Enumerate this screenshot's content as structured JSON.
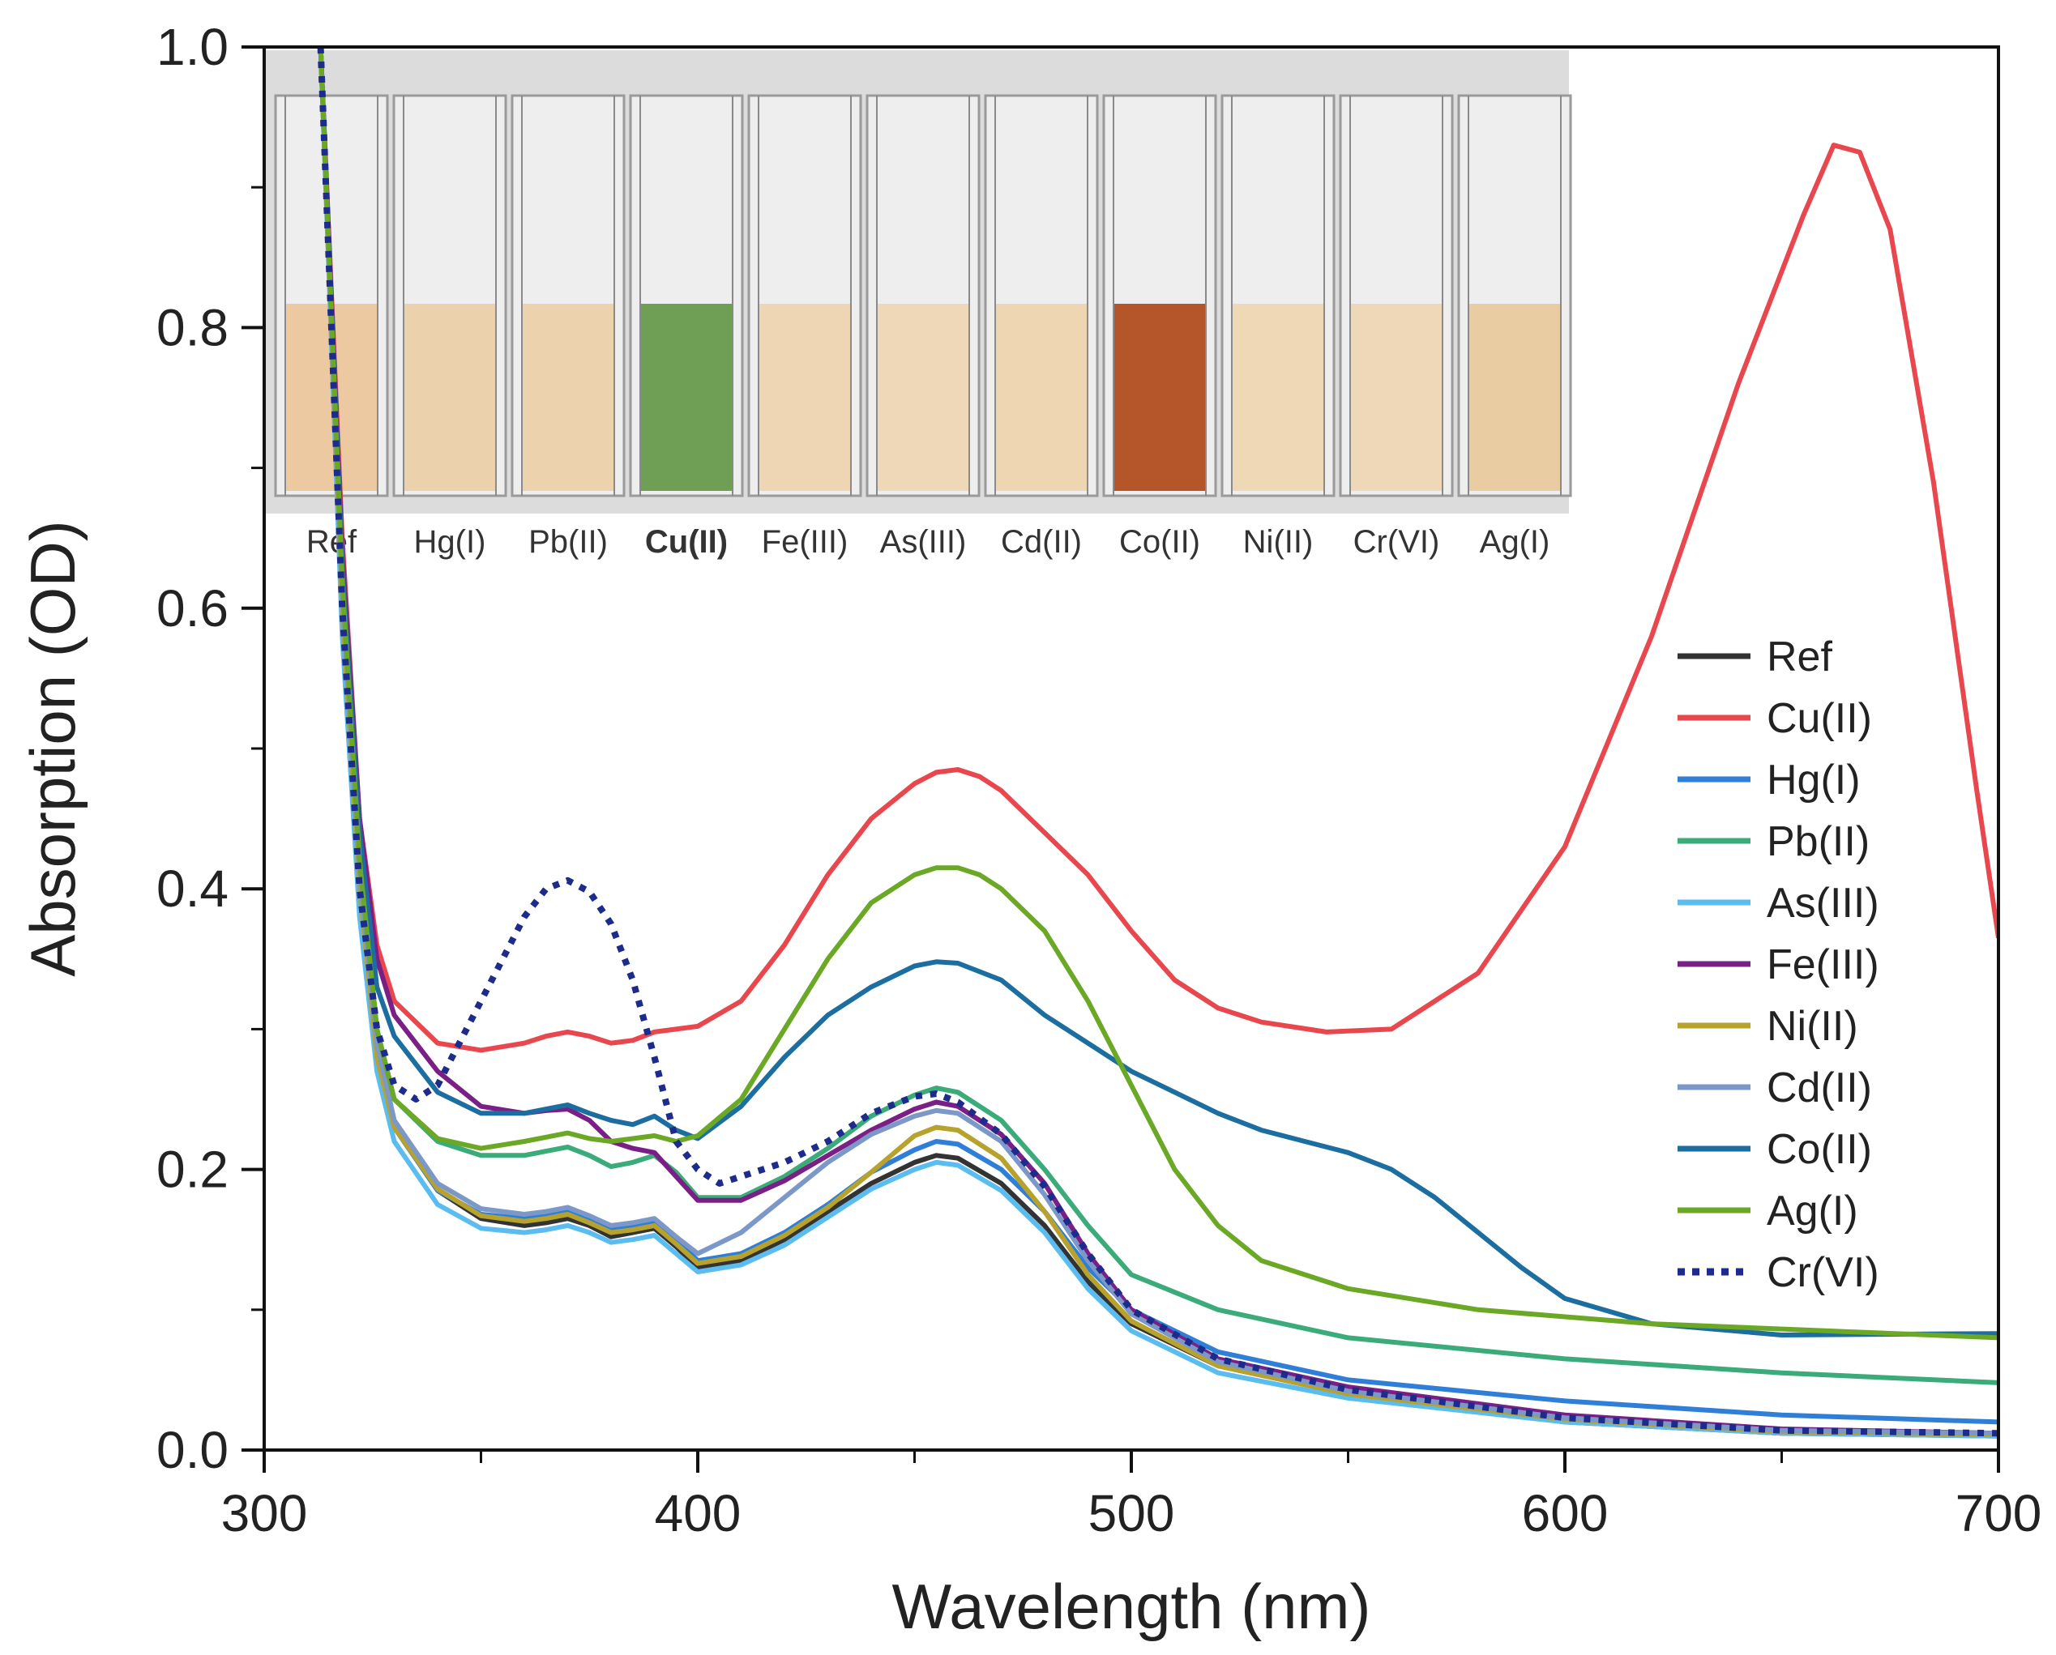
{
  "chart_data": {
    "type": "line",
    "xlabel": "Wavelength (nm)",
    "ylabel": "Absorption (OD)",
    "xlim": [
      300,
      700
    ],
    "ylim": [
      0.0,
      1.0
    ],
    "xticks": [
      300,
      400,
      500,
      600,
      700
    ],
    "yticks": [
      0.0,
      0.2,
      0.4,
      0.6,
      0.8,
      1.0
    ],
    "ytick_labels": [
      "0.0",
      "0.2",
      "0.4",
      "0.6",
      "0.8",
      "1.0"
    ],
    "legend_position": "right",
    "inset": {
      "description_labels": [
        "Ref",
        "Hg(I)",
        "Pb(II)",
        "Cu(II)",
        "Fe(III)",
        "As(III)",
        "Cd(II)",
        "Co(II)",
        "Ni(II)",
        "Cr(VI)",
        "Ag(I)"
      ],
      "highlight_label": "Cu(II)",
      "liquid_colors": [
        "#ecc9a0",
        "#ecd1ad",
        "#edd2ae",
        "#6f9e55",
        "#eed6b4",
        "#eed8b8",
        "#eed6b2",
        "#b5562a",
        "#eed8b6",
        "#eed8b7",
        "#e9cca2"
      ]
    },
    "series": [
      {
        "name": "Ref",
        "color": "#333333",
        "dash": "solid",
        "x": [
          313,
          318,
          322,
          326,
          330,
          340,
          350,
          360,
          365,
          370,
          375,
          380,
          385,
          390,
          395,
          400,
          410,
          420,
          430,
          440,
          450,
          455,
          460,
          470,
          480,
          490,
          500,
          520,
          550,
          600,
          650,
          700
        ],
        "y": [
          1.0,
          0.6,
          0.4,
          0.28,
          0.23,
          0.185,
          0.165,
          0.16,
          0.162,
          0.165,
          0.16,
          0.152,
          0.155,
          0.158,
          0.145,
          0.13,
          0.135,
          0.15,
          0.17,
          0.19,
          0.205,
          0.21,
          0.208,
          0.19,
          0.16,
          0.12,
          0.09,
          0.06,
          0.04,
          0.02,
          0.012,
          0.01
        ]
      },
      {
        "name": "Cu(II)",
        "color": "#e8474e",
        "dash": "solid",
        "x": [
          313,
          318,
          322,
          326,
          330,
          340,
          350,
          360,
          365,
          370,
          375,
          380,
          385,
          390,
          395,
          400,
          410,
          420,
          430,
          440,
          450,
          455,
          460,
          465,
          470,
          480,
          490,
          500,
          510,
          520,
          530,
          545,
          560,
          580,
          600,
          620,
          640,
          655,
          662,
          668,
          675,
          685,
          695,
          700
        ],
        "y": [
          1.0,
          0.65,
          0.45,
          0.36,
          0.32,
          0.29,
          0.285,
          0.29,
          0.295,
          0.298,
          0.295,
          0.29,
          0.292,
          0.298,
          0.3,
          0.302,
          0.32,
          0.36,
          0.41,
          0.45,
          0.475,
          0.483,
          0.485,
          0.48,
          0.47,
          0.44,
          0.41,
          0.37,
          0.335,
          0.315,
          0.305,
          0.298,
          0.3,
          0.34,
          0.43,
          0.58,
          0.76,
          0.88,
          0.93,
          0.925,
          0.87,
          0.69,
          0.47,
          0.365
        ]
      },
      {
        "name": "Hg(I)",
        "color": "#2f7fd8",
        "dash": "solid",
        "x": [
          313,
          318,
          322,
          326,
          330,
          340,
          350,
          360,
          365,
          370,
          375,
          380,
          385,
          390,
          395,
          400,
          410,
          420,
          430,
          440,
          450,
          455,
          460,
          470,
          480,
          490,
          500,
          520,
          550,
          600,
          650,
          700
        ],
        "y": [
          1.0,
          0.6,
          0.4,
          0.28,
          0.23,
          0.185,
          0.168,
          0.165,
          0.167,
          0.17,
          0.165,
          0.158,
          0.16,
          0.163,
          0.15,
          0.135,
          0.14,
          0.155,
          0.175,
          0.198,
          0.214,
          0.22,
          0.218,
          0.2,
          0.17,
          0.13,
          0.1,
          0.07,
          0.05,
          0.035,
          0.025,
          0.02
        ]
      },
      {
        "name": "Pb(II)",
        "color": "#3bab7a",
        "dash": "solid",
        "x": [
          313,
          318,
          322,
          326,
          330,
          340,
          350,
          360,
          365,
          370,
          375,
          380,
          385,
          390,
          395,
          400,
          410,
          420,
          430,
          440,
          450,
          455,
          460,
          470,
          480,
          490,
          500,
          520,
          550,
          600,
          650,
          700
        ],
        "y": [
          1.0,
          0.62,
          0.42,
          0.3,
          0.25,
          0.22,
          0.21,
          0.21,
          0.213,
          0.216,
          0.21,
          0.202,
          0.205,
          0.21,
          0.198,
          0.18,
          0.18,
          0.195,
          0.215,
          0.238,
          0.253,
          0.258,
          0.255,
          0.235,
          0.2,
          0.16,
          0.125,
          0.1,
          0.08,
          0.065,
          0.055,
          0.048
        ]
      },
      {
        "name": "As(III)",
        "color": "#5bbcf0",
        "dash": "solid",
        "x": [
          313,
          318,
          322,
          326,
          330,
          340,
          350,
          360,
          365,
          370,
          375,
          380,
          385,
          390,
          395,
          400,
          410,
          420,
          430,
          440,
          450,
          455,
          460,
          470,
          480,
          490,
          500,
          520,
          550,
          600,
          650,
          700
        ],
        "y": [
          1.0,
          0.58,
          0.38,
          0.27,
          0.22,
          0.175,
          0.158,
          0.155,
          0.157,
          0.16,
          0.155,
          0.148,
          0.15,
          0.153,
          0.14,
          0.127,
          0.132,
          0.146,
          0.166,
          0.186,
          0.2,
          0.205,
          0.203,
          0.185,
          0.155,
          0.115,
          0.085,
          0.055,
          0.037,
          0.02,
          0.012,
          0.01
        ]
      },
      {
        "name": "Fe(III)",
        "color": "#7a1f86",
        "dash": "solid",
        "x": [
          313,
          318,
          322,
          326,
          330,
          340,
          350,
          360,
          365,
          370,
          375,
          380,
          385,
          390,
          395,
          400,
          410,
          420,
          430,
          440,
          450,
          455,
          460,
          470,
          480,
          490,
          500,
          520,
          550,
          600,
          650,
          700
        ],
        "y": [
          1.0,
          0.64,
          0.45,
          0.35,
          0.31,
          0.27,
          0.245,
          0.24,
          0.242,
          0.243,
          0.235,
          0.22,
          0.215,
          0.212,
          0.195,
          0.178,
          0.178,
          0.192,
          0.21,
          0.228,
          0.243,
          0.248,
          0.245,
          0.225,
          0.19,
          0.14,
          0.1,
          0.065,
          0.045,
          0.025,
          0.015,
          0.012
        ]
      },
      {
        "name": "Ni(II)",
        "color": "#b8a22e",
        "dash": "solid",
        "x": [
          313,
          318,
          322,
          326,
          330,
          340,
          350,
          360,
          365,
          370,
          375,
          380,
          385,
          390,
          395,
          400,
          410,
          420,
          430,
          440,
          450,
          455,
          460,
          470,
          480,
          490,
          500,
          520,
          550,
          600,
          650,
          700
        ],
        "y": [
          1.0,
          0.6,
          0.4,
          0.28,
          0.23,
          0.186,
          0.167,
          0.163,
          0.165,
          0.168,
          0.162,
          0.155,
          0.157,
          0.16,
          0.147,
          0.133,
          0.138,
          0.153,
          0.173,
          0.198,
          0.224,
          0.23,
          0.228,
          0.208,
          0.17,
          0.125,
          0.092,
          0.06,
          0.04,
          0.022,
          0.013,
          0.011
        ]
      },
      {
        "name": "Cd(II)",
        "color": "#7b98c8",
        "dash": "solid",
        "x": [
          313,
          318,
          322,
          326,
          330,
          340,
          350,
          360,
          365,
          370,
          375,
          380,
          385,
          390,
          395,
          400,
          410,
          420,
          430,
          440,
          450,
          455,
          460,
          470,
          480,
          490,
          500,
          520,
          550,
          600,
          650,
          700
        ],
        "y": [
          1.0,
          0.61,
          0.41,
          0.29,
          0.235,
          0.19,
          0.172,
          0.168,
          0.17,
          0.173,
          0.167,
          0.16,
          0.162,
          0.165,
          0.152,
          0.14,
          0.155,
          0.18,
          0.205,
          0.225,
          0.238,
          0.242,
          0.24,
          0.22,
          0.182,
          0.135,
          0.097,
          0.063,
          0.042,
          0.023,
          0.014,
          0.012
        ]
      },
      {
        "name": "Co(II)",
        "color": "#1c6ea0",
        "dash": "solid",
        "x": [
          313,
          318,
          322,
          326,
          330,
          340,
          350,
          360,
          365,
          370,
          375,
          380,
          385,
          390,
          395,
          400,
          410,
          420,
          430,
          440,
          450,
          455,
          460,
          470,
          480,
          490,
          500,
          510,
          520,
          530,
          540,
          550,
          560,
          570,
          580,
          590,
          600,
          620,
          650,
          700
        ],
        "y": [
          1.0,
          0.63,
          0.44,
          0.33,
          0.295,
          0.255,
          0.24,
          0.24,
          0.243,
          0.246,
          0.24,
          0.235,
          0.232,
          0.238,
          0.228,
          0.222,
          0.245,
          0.28,
          0.31,
          0.33,
          0.345,
          0.348,
          0.347,
          0.335,
          0.31,
          0.29,
          0.27,
          0.255,
          0.24,
          0.228,
          0.22,
          0.212,
          0.2,
          0.18,
          0.155,
          0.13,
          0.108,
          0.09,
          0.082,
          0.083
        ]
      },
      {
        "name": "Ag(I)",
        "color": "#6aa825",
        "dash": "solid",
        "x": [
          313,
          318,
          322,
          326,
          330,
          340,
          350,
          360,
          365,
          370,
          375,
          380,
          385,
          390,
          395,
          400,
          410,
          420,
          430,
          440,
          450,
          455,
          460,
          465,
          470,
          480,
          490,
          500,
          510,
          520,
          530,
          550,
          580,
          620,
          660,
          700
        ],
        "y": [
          1.0,
          0.62,
          0.42,
          0.3,
          0.25,
          0.222,
          0.215,
          0.22,
          0.223,
          0.226,
          0.222,
          0.22,
          0.222,
          0.224,
          0.22,
          0.224,
          0.25,
          0.3,
          0.35,
          0.39,
          0.41,
          0.415,
          0.415,
          0.41,
          0.4,
          0.37,
          0.32,
          0.26,
          0.2,
          0.16,
          0.135,
          0.115,
          0.1,
          0.09,
          0.085,
          0.08
        ]
      },
      {
        "name": "Cr(VI)",
        "color": "#1c2b8c",
        "dash": "dotted",
        "x": [
          313,
          318,
          322,
          326,
          330,
          335,
          340,
          345,
          350,
          355,
          360,
          365,
          370,
          375,
          380,
          385,
          390,
          395,
          400,
          405,
          410,
          420,
          430,
          440,
          450,
          455,
          460,
          470,
          480,
          490,
          500,
          520,
          550,
          600,
          650,
          700
        ],
        "y": [
          1.0,
          0.6,
          0.4,
          0.3,
          0.26,
          0.25,
          0.26,
          0.29,
          0.32,
          0.35,
          0.38,
          0.4,
          0.406,
          0.398,
          0.375,
          0.335,
          0.28,
          0.22,
          0.2,
          0.19,
          0.195,
          0.205,
          0.22,
          0.24,
          0.252,
          0.254,
          0.248,
          0.225,
          0.188,
          0.14,
          0.1,
          0.065,
          0.043,
          0.023,
          0.014,
          0.012
        ]
      }
    ]
  }
}
